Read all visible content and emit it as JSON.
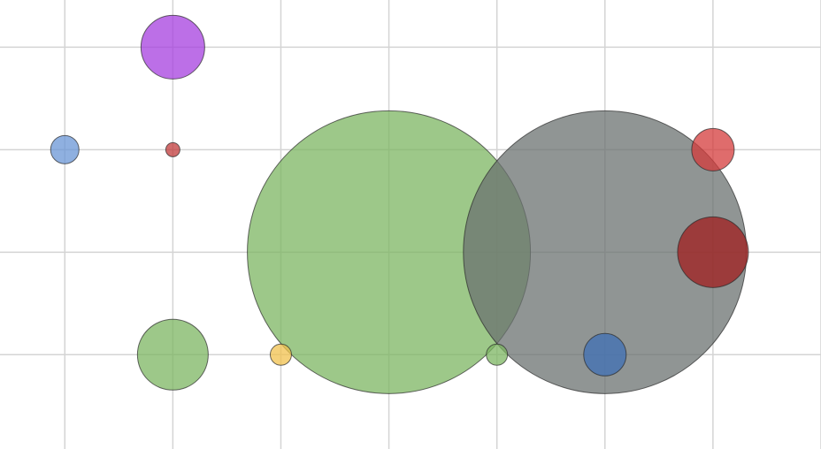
{
  "chart_data": {
    "type": "scatter",
    "x": [
      2,
      1,
      2,
      4,
      6,
      7,
      7,
      2,
      3,
      5,
      6
    ],
    "values": [
      4,
      3,
      3,
      2,
      2,
      3,
      2,
      1,
      1,
      1,
      1
    ],
    "sizes": [
      36,
      16,
      8,
      160,
      160,
      24,
      40,
      40,
      12,
      12,
      24
    ],
    "colors": [
      "#a63fdf",
      "#6a95d6",
      "#c23b3b",
      "#7cb661",
      "#6b7170",
      "#d43b3b",
      "#a01e1e",
      "#7cb661",
      "#f2c14e",
      "#7cb661",
      "#3f70b5"
    ],
    "xlim": [
      0.4,
      8
    ],
    "ylim": [
      0.08,
      4.46
    ],
    "xticks": [
      1,
      2,
      3,
      4,
      5,
      6,
      7,
      8
    ],
    "yticks": [
      1,
      2,
      3,
      4
    ],
    "grid": true
  }
}
